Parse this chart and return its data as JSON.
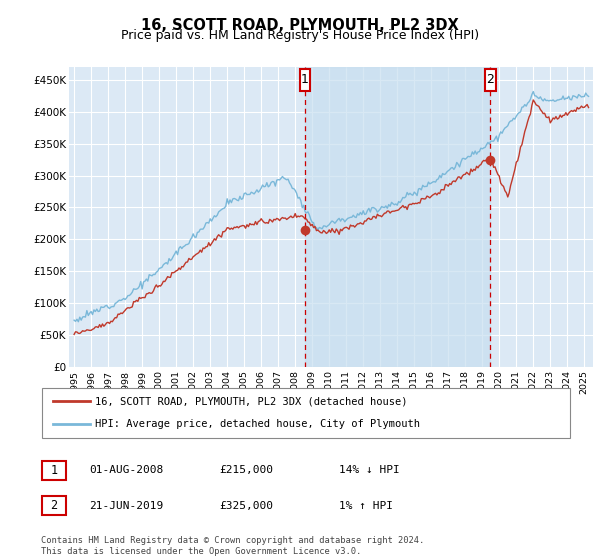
{
  "title": "16, SCOTT ROAD, PLYMOUTH, PL2 3DX",
  "subtitle": "Price paid vs. HM Land Registry's House Price Index (HPI)",
  "ylabel_ticks": [
    "£0",
    "£50K",
    "£100K",
    "£150K",
    "£200K",
    "£250K",
    "£300K",
    "£350K",
    "£400K",
    "£450K"
  ],
  "ytick_values": [
    0,
    50000,
    100000,
    150000,
    200000,
    250000,
    300000,
    350000,
    400000,
    450000
  ],
  "ylim": [
    0,
    470000
  ],
  "xlim_start": 1994.7,
  "xlim_end": 2025.5,
  "sale1_date": 2008.58,
  "sale1_price": 215000,
  "sale1_label": "1",
  "sale2_date": 2019.47,
  "sale2_price": 325000,
  "sale2_label": "2",
  "hpi_color": "#7ab8d9",
  "price_color": "#c0392b",
  "background_color": "#ddeeff",
  "plot_bg": "#dce9f5",
  "grid_color": "#ffffff",
  "shade_color": "#c8dff0",
  "annotation_box_color": "#cc0000",
  "legend_label1": "16, SCOTT ROAD, PLYMOUTH, PL2 3DX (detached house)",
  "legend_label2": "HPI: Average price, detached house, City of Plymouth",
  "table_row1": [
    "1",
    "01-AUG-2008",
    "£215,000",
    "14% ↓ HPI"
  ],
  "table_row2": [
    "2",
    "21-JUN-2019",
    "£325,000",
    "1% ↑ HPI"
  ],
  "footnote": "Contains HM Land Registry data © Crown copyright and database right 2024.\nThis data is licensed under the Open Government Licence v3.0.",
  "title_fontsize": 10.5,
  "subtitle_fontsize": 9,
  "hpi_noise_std": 2500,
  "price_noise_std": 2000,
  "seed": 12
}
